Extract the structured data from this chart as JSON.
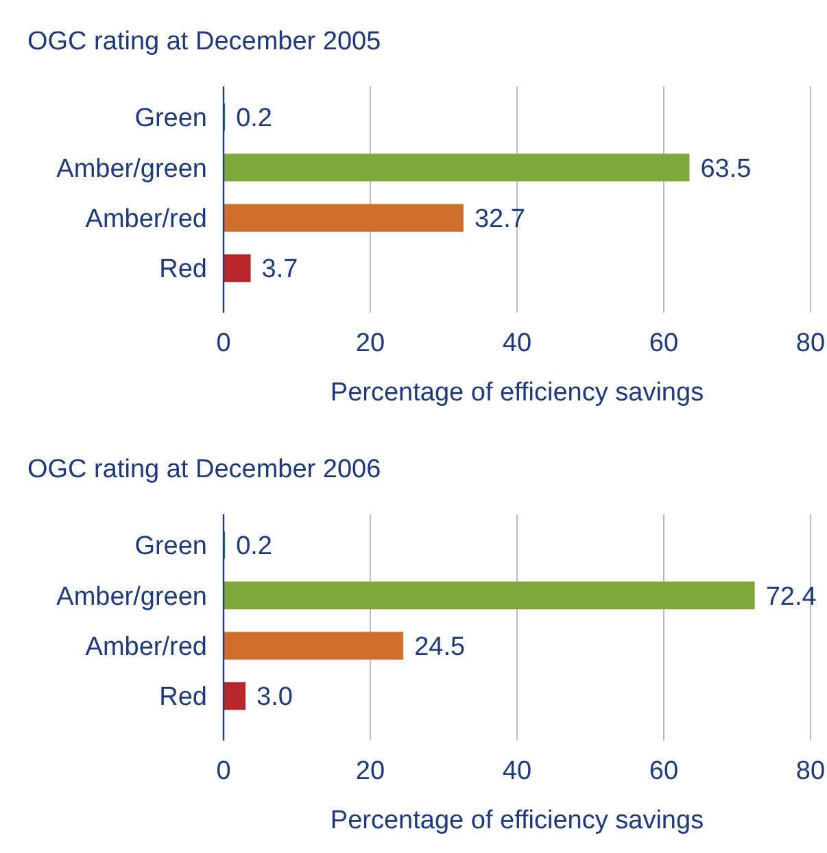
{
  "chart_data": [
    {
      "type": "bar",
      "orientation": "horizontal",
      "title": "OGC rating at December 2005",
      "categories": [
        "Green",
        "Amber/green",
        "Amber/red",
        "Red"
      ],
      "values": [
        0.2,
        63.5,
        32.7,
        3.7
      ],
      "colors": [
        "#1b8a4c",
        "#7fa83a",
        "#d0702c",
        "#b8282a"
      ],
      "xlim": [
        0,
        80
      ],
      "xticks": [
        0,
        20,
        40,
        60,
        80
      ],
      "xlabel": "Percentage of efficiency savings",
      "grid": "x",
      "data_labels": true
    },
    {
      "type": "bar",
      "orientation": "horizontal",
      "title": "OGC rating at December 2006",
      "categories": [
        "Green",
        "Amber/green",
        "Amber/red",
        "Red"
      ],
      "values": [
        0.2,
        72.4,
        24.5,
        3.0
      ],
      "value_labels": [
        "0.2",
        "72.4",
        "24.5",
        "3.0"
      ],
      "colors": [
        "#1b8a4c",
        "#7fa83a",
        "#d0702c",
        "#b8282a"
      ],
      "xlim": [
        0,
        80
      ],
      "xticks": [
        0,
        20,
        40,
        60,
        80
      ],
      "xlabel": "Percentage of efficiency savings",
      "grid": "x",
      "data_labels": true
    }
  ]
}
